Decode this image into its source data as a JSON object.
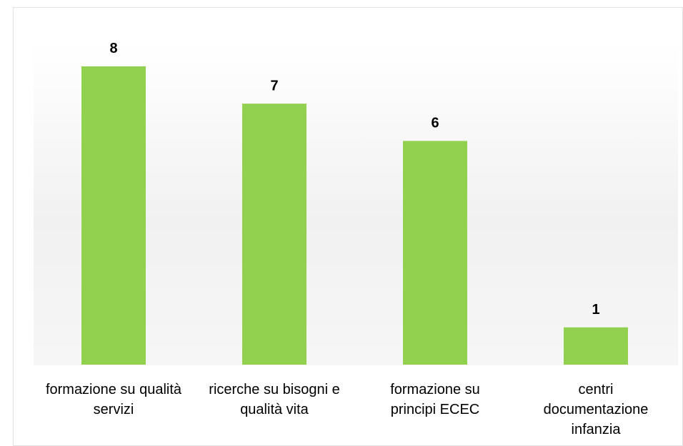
{
  "chart_data": {
    "type": "bar",
    "categories": [
      [
        "formazione su qualità",
        "servizi"
      ],
      [
        "ricerche su bisogni e",
        "qualità vita"
      ],
      [
        "formazione su",
        "principi ECEC"
      ],
      [
        "centri",
        "documentazione",
        "infanzia"
      ]
    ],
    "values": [
      8,
      7,
      6,
      1
    ],
    "data_labels": [
      "8",
      "7",
      "6",
      "1"
    ],
    "title": "",
    "xlabel": "",
    "ylabel": "",
    "ylim": [
      0,
      8
    ],
    "grid": false,
    "legend": "none",
    "bar_color": "#92d050"
  }
}
